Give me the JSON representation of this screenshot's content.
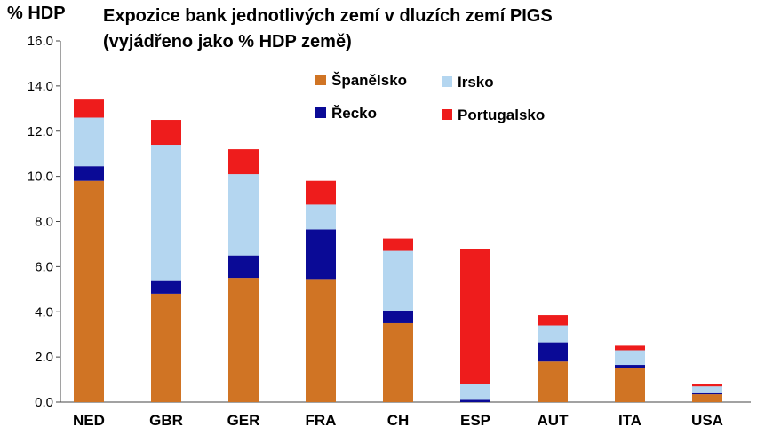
{
  "chart_data": {
    "type": "bar",
    "stacked": true,
    "title": "Expozice bank jednotlivých zemí v dluzích zemí PIGS",
    "subtitle": "(vyjádřeno jako % HDP země)",
    "ylabel": "% HDP",
    "xlabel": "",
    "ylim": [
      0,
      16
    ],
    "yticks": [
      "0.0",
      "2.0",
      "4.0",
      "6.0",
      "8.0",
      "10.0",
      "12.0",
      "14.0",
      "16.0"
    ],
    "categories": [
      "NED",
      "GBR",
      "GER",
      "FRA",
      "CH",
      "ESP",
      "AUT",
      "ITA",
      "USA"
    ],
    "series": [
      {
        "name": "Španělsko",
        "color": "#d07424",
        "values": [
          9.8,
          4.8,
          5.5,
          5.45,
          3.5,
          0.0,
          1.8,
          1.5,
          0.35
        ]
      },
      {
        "name": "Řecko",
        "color": "#0a0a96",
        "values": [
          0.65,
          0.6,
          1.0,
          2.2,
          0.55,
          0.1,
          0.85,
          0.15,
          0.05
        ]
      },
      {
        "name": "Irsko",
        "color": "#b4d6f0",
        "values": [
          2.15,
          6.0,
          3.6,
          1.1,
          2.65,
          0.7,
          0.75,
          0.65,
          0.3
        ]
      },
      {
        "name": "Portugalsko",
        "color": "#ee1c1c",
        "values": [
          0.8,
          1.1,
          1.1,
          1.05,
          0.55,
          6.0,
          0.45,
          0.2,
          0.1
        ]
      }
    ],
    "legend": {
      "placement": "top-right",
      "order": [
        "Španělsko",
        "Irsko",
        "Řecko",
        "Portugalsko"
      ]
    },
    "grid": false
  }
}
